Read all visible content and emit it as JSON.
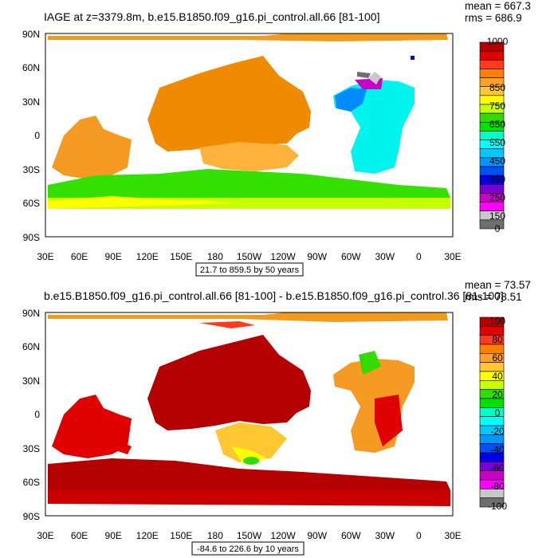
{
  "panels": [
    {
      "id": "top",
      "title": "IAGE at z=3379.8m, b.e15.B1850.f09_g16.pi_control.all.66 [81-100]",
      "mean_label": "mean = 667.3",
      "rms_label": "rms = 686.9",
      "contour_info": "21.7 to 859.5 by 50 years",
      "colorbar_labels": [
        "1000",
        "850",
        "750",
        "650",
        "550",
        "450",
        "350",
        "250",
        "150",
        "0"
      ],
      "colorbar_colors": [
        "#b40000",
        "#e00000",
        "#ff3a1e",
        "#ff7f00",
        "#ffa028",
        "#ffc832",
        "#ffff00",
        "#c8ff00",
        "#32dc00",
        "#00e100",
        "#00ffc8",
        "#00ffff",
        "#00c8ff",
        "#0096ff",
        "#0050ff",
        "#0000e6",
        "#7800d2",
        "#c800c8",
        "#ff00ff",
        "#c8c8c8",
        "#6e6e6e"
      ]
    },
    {
      "id": "bottom",
      "title": "b.e15.B1850.f09_g16.pi_control.all.66 [81-100] - b.e15.B1850.f09_g16.pi_control.36 [81-100]",
      "mean_label": "mean = 73.57",
      "rms_label": "rms = 78.51",
      "contour_info": "-84.6 to 226.6 by 10 years",
      "colorbar_labels": [
        "100",
        "80",
        "60",
        "40",
        "20",
        "0",
        "-20",
        "-40",
        "-60",
        "-80",
        "-100"
      ],
      "colorbar_colors": [
        "#b40000",
        "#e00000",
        "#ff3a1e",
        "#ff7f00",
        "#ffa028",
        "#ffc832",
        "#ffff00",
        "#c8ff00",
        "#32dc00",
        "#00e100",
        "#00ffc8",
        "#00ffff",
        "#00c8ff",
        "#0096ff",
        "#0050ff",
        "#0000e6",
        "#7800d2",
        "#c800c8",
        "#ff00ff",
        "#c8c8c8",
        "#6e6e6e"
      ]
    }
  ],
  "lat_labels": [
    "90N",
    "60N",
    "30N",
    "0",
    "30S",
    "60S",
    "90S"
  ],
  "lon_labels": [
    "30E",
    "60E",
    "90E",
    "120E",
    "150E",
    "180",
    "150W",
    "120W",
    "90W",
    "60W",
    "30W",
    "0",
    "30E"
  ]
}
